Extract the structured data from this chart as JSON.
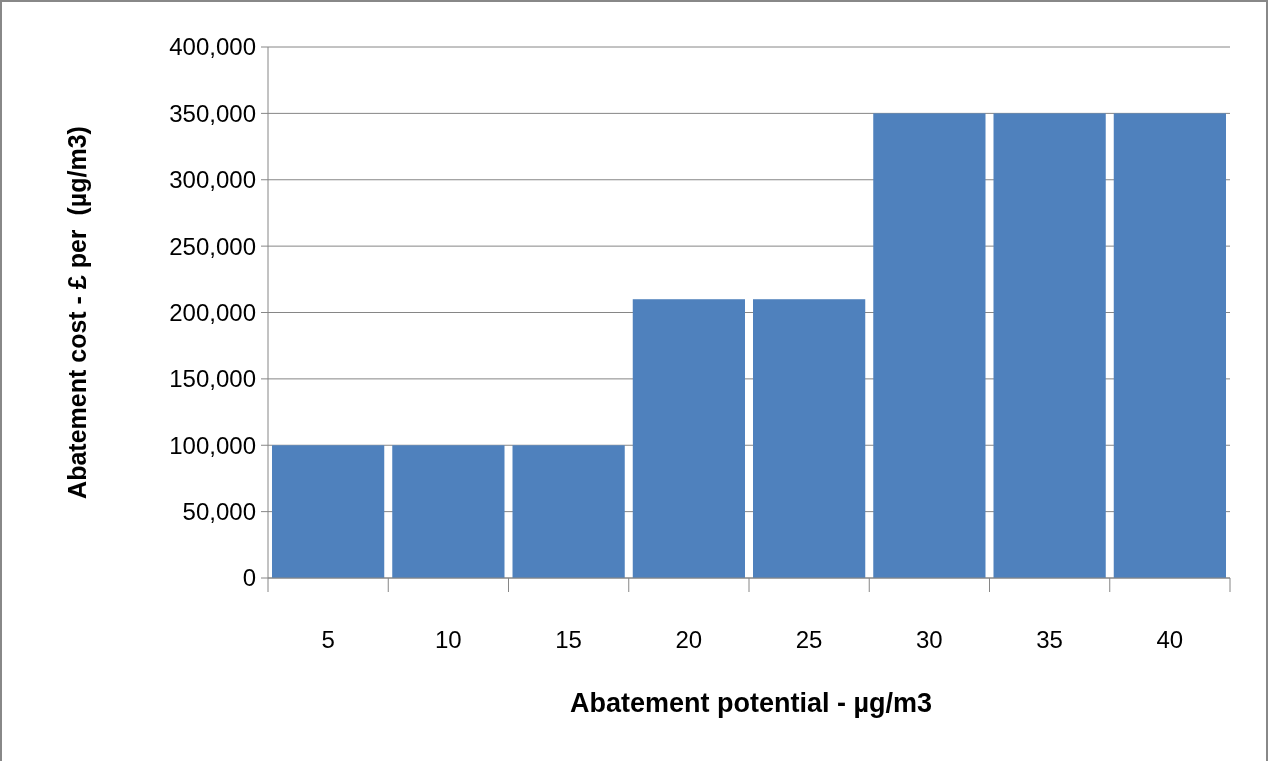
{
  "chart_data": {
    "type": "bar",
    "xlabel": "Abatement potential - µg/m3",
    "ylabel": "Abatement cost - £ per  (µg/m3)",
    "categories": [
      "5",
      "10",
      "15",
      "20",
      "25",
      "30",
      "35",
      "40"
    ],
    "values": [
      100000,
      100000,
      100000,
      210000,
      210000,
      350000,
      350000,
      350000
    ],
    "color": "#4f81bd",
    "ylim": [
      0,
      400000
    ],
    "yticks": [
      {
        "value": 0,
        "label": "0"
      },
      {
        "value": 50000,
        "label": "50,000"
      },
      {
        "value": 100000,
        "label": "100,000"
      },
      {
        "value": 150000,
        "label": "150,000"
      },
      {
        "value": 200000,
        "label": "200,000"
      },
      {
        "value": 250000,
        "label": "250,000"
      },
      {
        "value": 300000,
        "label": "300,000"
      },
      {
        "value": 350000,
        "label": "350,000"
      },
      {
        "value": 400000,
        "label": "400,000"
      }
    ],
    "grid": "y"
  }
}
